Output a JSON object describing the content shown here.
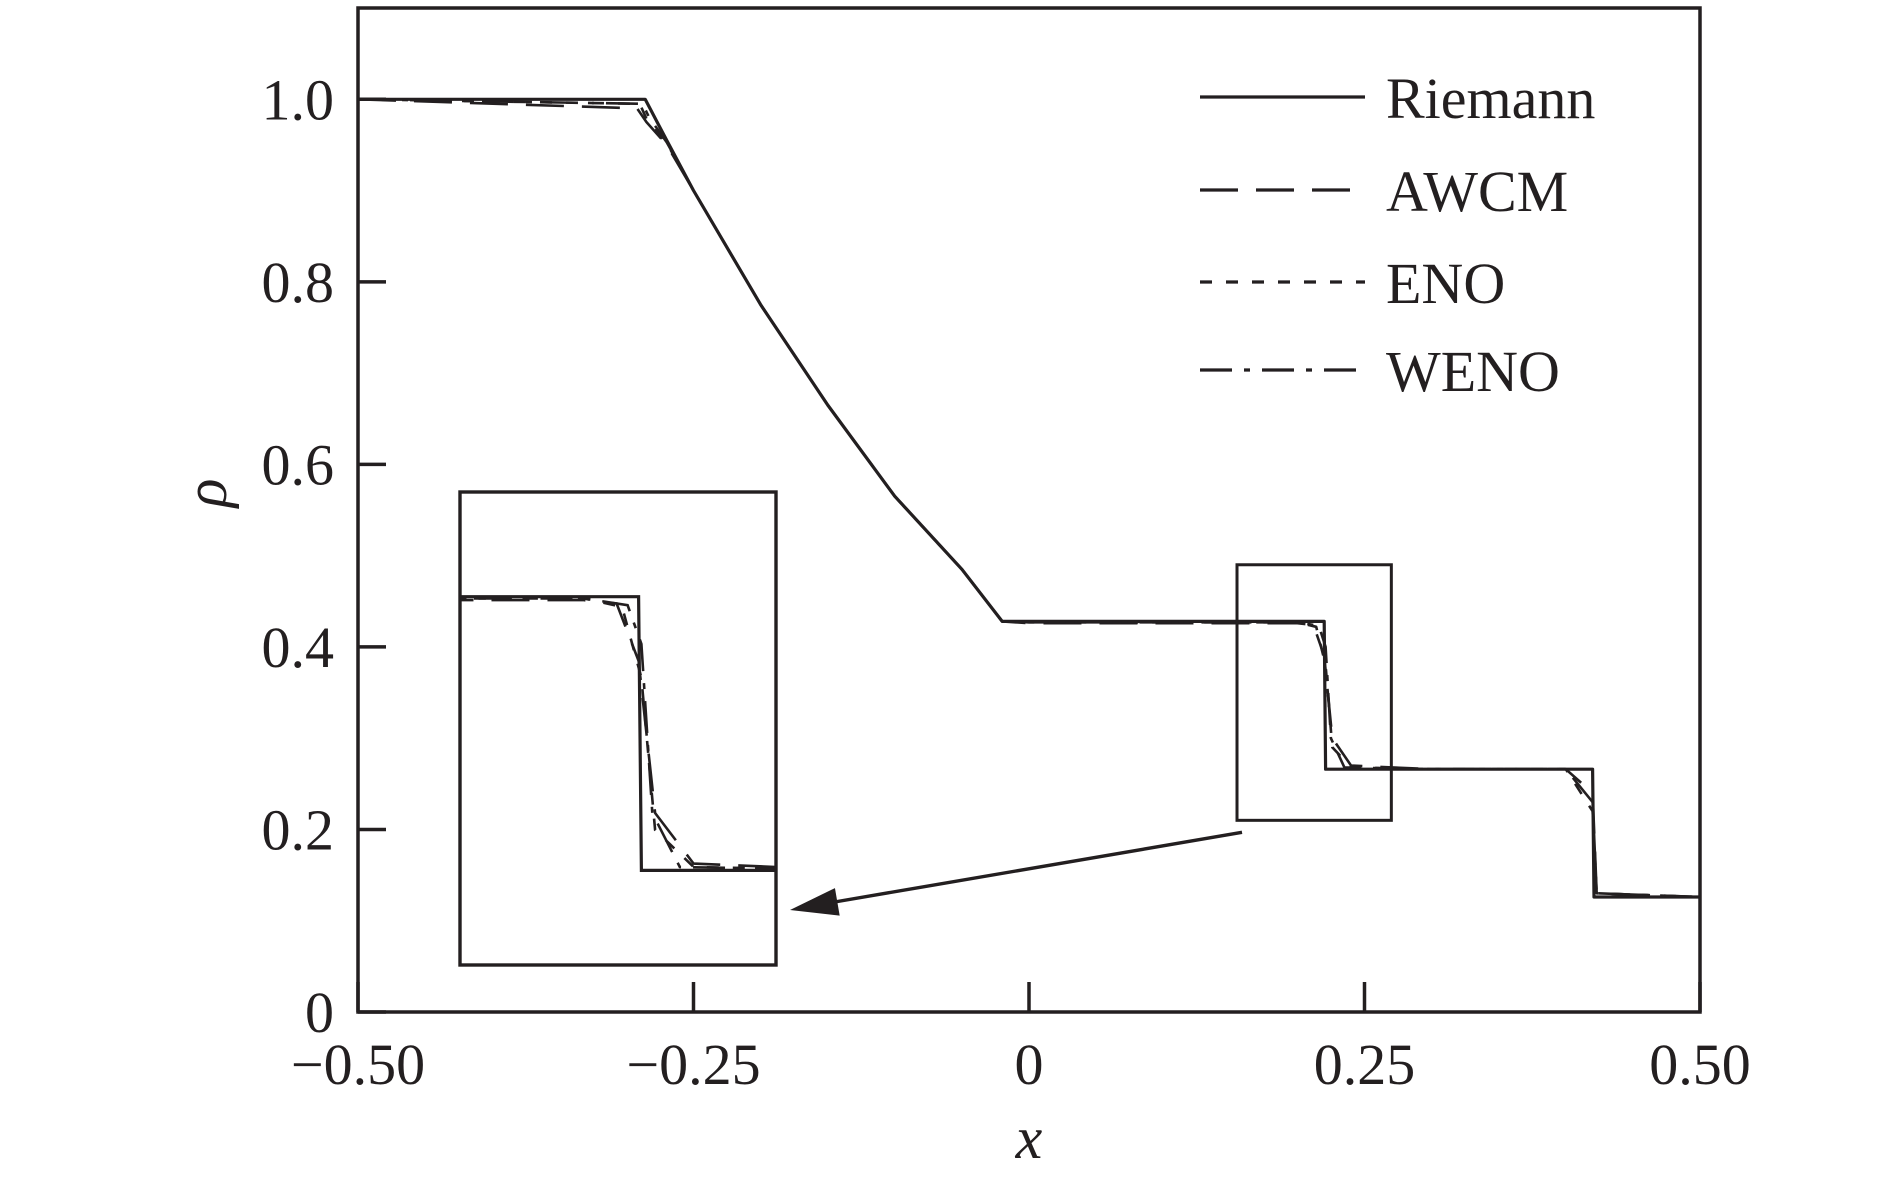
{
  "chart_data": {
    "type": "line",
    "title": "",
    "xlabel": "x",
    "ylabel": "ρ",
    "xlim": [
      -0.5,
      0.5
    ],
    "ylim": [
      0,
      1.1
    ],
    "grid": false,
    "legend_position": "top-right",
    "xticks": [
      {
        "value": -0.5,
        "label": "−0.50"
      },
      {
        "value": -0.25,
        "label": "−0.25"
      },
      {
        "value": 0,
        "label": "0"
      },
      {
        "value": 0.25,
        "label": "0.25"
      },
      {
        "value": 0.5,
        "label": "0.50"
      }
    ],
    "yticks": [
      {
        "value": 0,
        "label": "0"
      },
      {
        "value": 0.2,
        "label": "0.2"
      },
      {
        "value": 0.4,
        "label": "0.4"
      },
      {
        "value": 0.6,
        "label": "0.6"
      },
      {
        "value": 0.8,
        "label": "0.8"
      },
      {
        "value": 1.0,
        "label": "1.0"
      }
    ],
    "series": [
      {
        "name": "Riemann",
        "style": "solid",
        "x": [
          -0.5,
          -0.286,
          -0.27,
          -0.25,
          -0.2,
          -0.15,
          -0.1,
          -0.05,
          -0.02,
          0.0,
          0.1,
          0.2,
          0.22,
          0.221,
          0.3,
          0.4,
          0.42,
          0.421,
          0.5
        ],
        "y": [
          1.0,
          1.0,
          0.955,
          0.9,
          0.775,
          0.665,
          0.565,
          0.485,
          0.428,
          0.428,
          0.428,
          0.428,
          0.428,
          0.266,
          0.266,
          0.266,
          0.266,
          0.126,
          0.126
        ]
      },
      {
        "name": "AWCM",
        "style": "dashed",
        "x": [
          -0.5,
          -0.292,
          -0.285,
          -0.27,
          -0.25,
          -0.2,
          -0.15,
          -0.1,
          -0.05,
          -0.02,
          0.0,
          0.1,
          0.2,
          0.212,
          0.22,
          0.226,
          0.24,
          0.3,
          0.4,
          0.42,
          0.423,
          0.5
        ],
        "y": [
          1.0,
          0.99,
          0.975,
          0.95,
          0.9,
          0.775,
          0.665,
          0.565,
          0.485,
          0.428,
          0.426,
          0.426,
          0.426,
          0.424,
          0.39,
          0.3,
          0.27,
          0.266,
          0.266,
          0.24,
          0.13,
          0.126
        ]
      },
      {
        "name": "ENO",
        "style": "dotted",
        "x": [
          -0.5,
          -0.29,
          -0.284,
          -0.27,
          -0.25,
          -0.2,
          -0.15,
          -0.1,
          -0.05,
          -0.02,
          0.0,
          0.1,
          0.2,
          0.214,
          0.221,
          0.226,
          0.24,
          0.3,
          0.4,
          0.42,
          0.423,
          0.5
        ],
        "y": [
          1.0,
          0.995,
          0.975,
          0.952,
          0.9,
          0.775,
          0.665,
          0.565,
          0.485,
          0.428,
          0.427,
          0.427,
          0.427,
          0.422,
          0.38,
          0.29,
          0.268,
          0.266,
          0.266,
          0.22,
          0.13,
          0.126
        ]
      },
      {
        "name": "WENO",
        "style": "dash-dot",
        "x": [
          -0.5,
          -0.288,
          -0.283,
          -0.27,
          -0.25,
          -0.2,
          -0.15,
          -0.1,
          -0.05,
          -0.02,
          0.0,
          0.1,
          0.2,
          0.216,
          0.221,
          0.225,
          0.235,
          0.3,
          0.4,
          0.42,
          0.423,
          0.5
        ],
        "y": [
          1.0,
          0.995,
          0.98,
          0.953,
          0.9,
          0.775,
          0.665,
          0.565,
          0.485,
          0.428,
          0.427,
          0.427,
          0.427,
          0.423,
          0.4,
          0.3,
          0.268,
          0.266,
          0.266,
          0.23,
          0.13,
          0.126
        ]
      }
    ],
    "zoom_region": {
      "xlim": [
        0.155,
        0.27
      ],
      "ylim": [
        0.21,
        0.49
      ]
    }
  }
}
